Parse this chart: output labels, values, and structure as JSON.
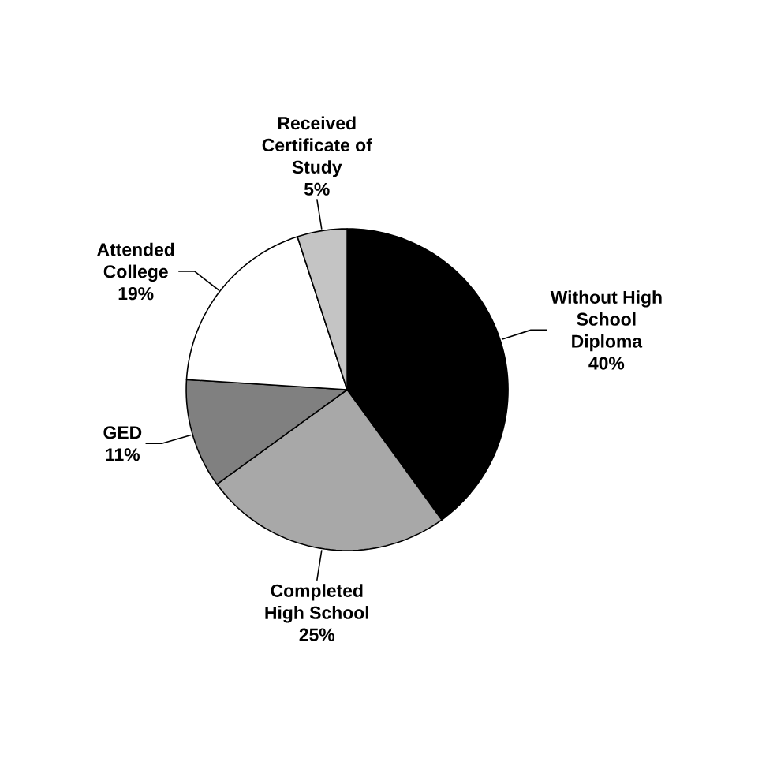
{
  "chart_data": {
    "type": "pie",
    "categories": [
      "Without High School Diploma",
      "Completed High School",
      "GED",
      "Attended College",
      "Received Certificate of Study"
    ],
    "values": [
      40,
      25,
      11,
      19,
      5
    ],
    "value_labels": [
      "40%",
      "25%",
      "11%",
      "19%",
      "5%"
    ],
    "colors": [
      "#000000",
      "#a8a8a8",
      "#808080",
      "#ffffff",
      "#c4c4c4"
    ]
  }
}
